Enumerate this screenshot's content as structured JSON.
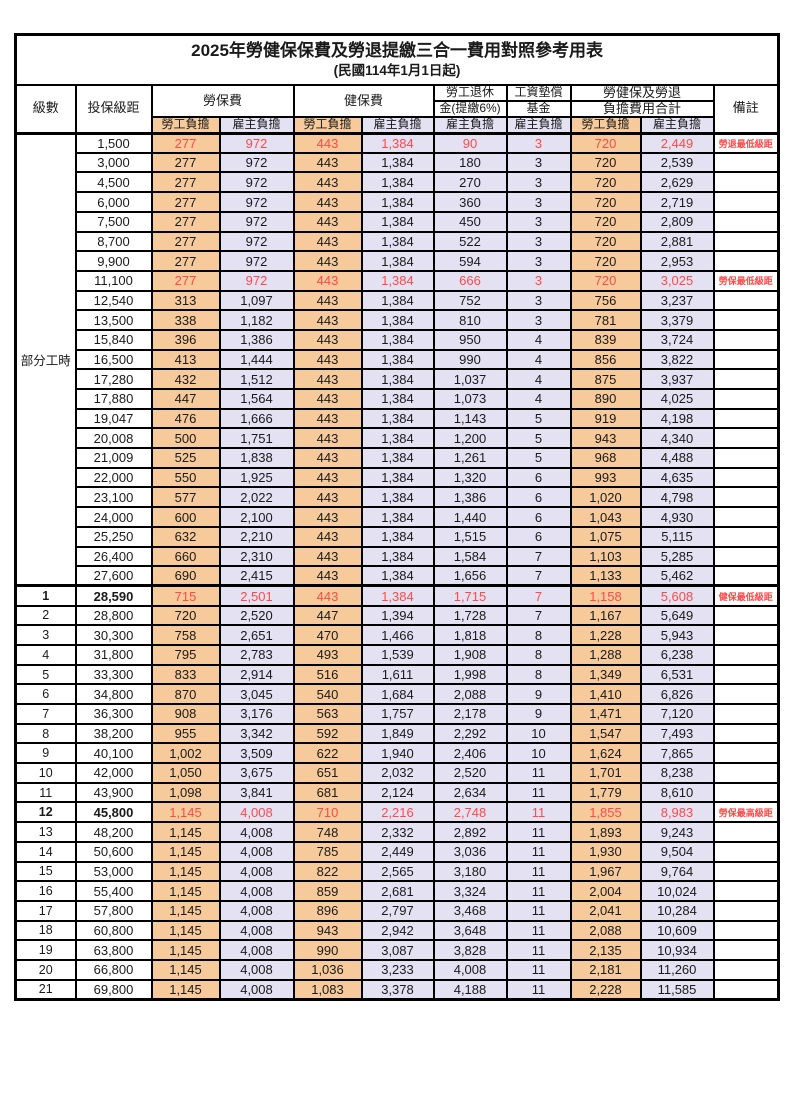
{
  "title": "2025年勞健保保費及勞退提繳三合一費用對照參考用表",
  "subtitle": "(民國114年1月1日起)",
  "colors": {
    "employee_bg": "#F6CA9B",
    "employer_bg": "#E3E1F2",
    "highlight_text": "#FF4A4A"
  },
  "header": {
    "level": "級數",
    "salary": "投保級距",
    "labor_insurance": "勞保費",
    "health_insurance": "健保費",
    "pension_line1": "勞工退休",
    "pension_line2": "金(提繳6%)",
    "wage_fund_line1": "工資墊償",
    "wage_fund_line2": "基金",
    "total_line1": "勞健保及勞退",
    "total_line2": "負擔費用合計",
    "remark": "備註",
    "employee_share": "勞工負擔",
    "employer_share": "雇主負擔"
  },
  "table": {
    "part_time_label": "部分工時",
    "part_time_span": 23,
    "rows": [
      {
        "group_start": true,
        "salary": "1,500",
        "values": [
          "277",
          "972",
          "443",
          "1,384",
          "90",
          "3",
          "720",
          "2,449"
        ],
        "remark": "勞退最低級距",
        "hl": true
      },
      {
        "salary": "3,000",
        "values": [
          "277",
          "972",
          "443",
          "1,384",
          "180",
          "3",
          "720",
          "2,539"
        ],
        "remark": ""
      },
      {
        "salary": "4,500",
        "values": [
          "277",
          "972",
          "443",
          "1,384",
          "270",
          "3",
          "720",
          "2,629"
        ],
        "remark": ""
      },
      {
        "salary": "6,000",
        "values": [
          "277",
          "972",
          "443",
          "1,384",
          "360",
          "3",
          "720",
          "2,719"
        ],
        "remark": ""
      },
      {
        "salary": "7,500",
        "values": [
          "277",
          "972",
          "443",
          "1,384",
          "450",
          "3",
          "720",
          "2,809"
        ],
        "remark": ""
      },
      {
        "salary": "8,700",
        "values": [
          "277",
          "972",
          "443",
          "1,384",
          "522",
          "3",
          "720",
          "2,881"
        ],
        "remark": ""
      },
      {
        "salary": "9,900",
        "values": [
          "277",
          "972",
          "443",
          "1,384",
          "594",
          "3",
          "720",
          "2,953"
        ],
        "remark": ""
      },
      {
        "salary": "11,100",
        "values": [
          "277",
          "972",
          "443",
          "1,384",
          "666",
          "3",
          "720",
          "3,025"
        ],
        "remark": "勞保最低級距",
        "hl": true
      },
      {
        "salary": "12,540",
        "values": [
          "313",
          "1,097",
          "443",
          "1,384",
          "752",
          "3",
          "756",
          "3,237"
        ],
        "remark": ""
      },
      {
        "salary": "13,500",
        "values": [
          "338",
          "1,182",
          "443",
          "1,384",
          "810",
          "3",
          "781",
          "3,379"
        ],
        "remark": ""
      },
      {
        "salary": "15,840",
        "values": [
          "396",
          "1,386",
          "443",
          "1,384",
          "950",
          "4",
          "839",
          "3,724"
        ],
        "remark": ""
      },
      {
        "salary": "16,500",
        "values": [
          "413",
          "1,444",
          "443",
          "1,384",
          "990",
          "4",
          "856",
          "3,822"
        ],
        "remark": ""
      },
      {
        "salary": "17,280",
        "values": [
          "432",
          "1,512",
          "443",
          "1,384",
          "1,037",
          "4",
          "875",
          "3,937"
        ],
        "remark": ""
      },
      {
        "salary": "17,880",
        "values": [
          "447",
          "1,564",
          "443",
          "1,384",
          "1,073",
          "4",
          "890",
          "4,025"
        ],
        "remark": ""
      },
      {
        "salary": "19,047",
        "values": [
          "476",
          "1,666",
          "443",
          "1,384",
          "1,143",
          "5",
          "919",
          "4,198"
        ],
        "remark": ""
      },
      {
        "salary": "20,008",
        "values": [
          "500",
          "1,751",
          "443",
          "1,384",
          "1,200",
          "5",
          "943",
          "4,340"
        ],
        "remark": ""
      },
      {
        "salary": "21,009",
        "values": [
          "525",
          "1,838",
          "443",
          "1,384",
          "1,261",
          "5",
          "968",
          "4,488"
        ],
        "remark": ""
      },
      {
        "salary": "22,000",
        "values": [
          "550",
          "1,925",
          "443",
          "1,384",
          "1,320",
          "6",
          "993",
          "4,635"
        ],
        "remark": ""
      },
      {
        "salary": "23,100",
        "values": [
          "577",
          "2,022",
          "443",
          "1,384",
          "1,386",
          "6",
          "1,020",
          "4,798"
        ],
        "remark": ""
      },
      {
        "salary": "24,000",
        "values": [
          "600",
          "2,100",
          "443",
          "1,384",
          "1,440",
          "6",
          "1,043",
          "4,930"
        ],
        "remark": ""
      },
      {
        "salary": "25,250",
        "values": [
          "632",
          "2,210",
          "443",
          "1,384",
          "1,515",
          "6",
          "1,075",
          "5,115"
        ],
        "remark": ""
      },
      {
        "salary": "26,400",
        "values": [
          "660",
          "2,310",
          "443",
          "1,384",
          "1,584",
          "7",
          "1,103",
          "5,285"
        ],
        "remark": ""
      },
      {
        "salary": "27,600",
        "values": [
          "690",
          "2,415",
          "443",
          "1,384",
          "1,656",
          "7",
          "1,133",
          "5,462"
        ],
        "remark": ""
      },
      {
        "level": "1",
        "salary": "28,590",
        "values": [
          "715",
          "2,501",
          "443",
          "1,384",
          "1,715",
          "7",
          "1,158",
          "5,608"
        ],
        "remark": "健保最低級距",
        "hl": true,
        "bold": true,
        "thick_top": true
      },
      {
        "level": "2",
        "salary": "28,800",
        "values": [
          "720",
          "2,520",
          "447",
          "1,394",
          "1,728",
          "7",
          "1,167",
          "5,649"
        ],
        "remark": ""
      },
      {
        "level": "3",
        "salary": "30,300",
        "values": [
          "758",
          "2,651",
          "470",
          "1,466",
          "1,818",
          "8",
          "1,228",
          "5,943"
        ],
        "remark": ""
      },
      {
        "level": "4",
        "salary": "31,800",
        "values": [
          "795",
          "2,783",
          "493",
          "1,539",
          "1,908",
          "8",
          "1,288",
          "6,238"
        ],
        "remark": ""
      },
      {
        "level": "5",
        "salary": "33,300",
        "values": [
          "833",
          "2,914",
          "516",
          "1,611",
          "1,998",
          "8",
          "1,349",
          "6,531"
        ],
        "remark": ""
      },
      {
        "level": "6",
        "salary": "34,800",
        "values": [
          "870",
          "3,045",
          "540",
          "1,684",
          "2,088",
          "9",
          "1,410",
          "6,826"
        ],
        "remark": ""
      },
      {
        "level": "7",
        "salary": "36,300",
        "values": [
          "908",
          "3,176",
          "563",
          "1,757",
          "2,178",
          "9",
          "1,471",
          "7,120"
        ],
        "remark": ""
      },
      {
        "level": "8",
        "salary": "38,200",
        "values": [
          "955",
          "3,342",
          "592",
          "1,849",
          "2,292",
          "10",
          "1,547",
          "7,493"
        ],
        "remark": ""
      },
      {
        "level": "9",
        "salary": "40,100",
        "values": [
          "1,002",
          "3,509",
          "622",
          "1,940",
          "2,406",
          "10",
          "1,624",
          "7,865"
        ],
        "remark": ""
      },
      {
        "level": "10",
        "salary": "42,000",
        "values": [
          "1,050",
          "3,675",
          "651",
          "2,032",
          "2,520",
          "11",
          "1,701",
          "8,238"
        ],
        "remark": ""
      },
      {
        "level": "11",
        "salary": "43,900",
        "values": [
          "1,098",
          "3,841",
          "681",
          "2,124",
          "2,634",
          "11",
          "1,779",
          "8,610"
        ],
        "remark": ""
      },
      {
        "level": "12",
        "salary": "45,800",
        "values": [
          "1,145",
          "4,008",
          "710",
          "2,216",
          "2,748",
          "11",
          "1,855",
          "8,983"
        ],
        "remark": "勞保最高級距",
        "hl": true,
        "bold": true
      },
      {
        "level": "13",
        "salary": "48,200",
        "values": [
          "1,145",
          "4,008",
          "748",
          "2,332",
          "2,892",
          "11",
          "1,893",
          "9,243"
        ],
        "remark": ""
      },
      {
        "level": "14",
        "salary": "50,600",
        "values": [
          "1,145",
          "4,008",
          "785",
          "2,449",
          "3,036",
          "11",
          "1,930",
          "9,504"
        ],
        "remark": ""
      },
      {
        "level": "15",
        "salary": "53,000",
        "values": [
          "1,145",
          "4,008",
          "822",
          "2,565",
          "3,180",
          "11",
          "1,967",
          "9,764"
        ],
        "remark": ""
      },
      {
        "level": "16",
        "salary": "55,400",
        "values": [
          "1,145",
          "4,008",
          "859",
          "2,681",
          "3,324",
          "11",
          "2,004",
          "10,024"
        ],
        "remark": ""
      },
      {
        "level": "17",
        "salary": "57,800",
        "values": [
          "1,145",
          "4,008",
          "896",
          "2,797",
          "3,468",
          "11",
          "2,041",
          "10,284"
        ],
        "remark": ""
      },
      {
        "level": "18",
        "salary": "60,800",
        "values": [
          "1,145",
          "4,008",
          "943",
          "2,942",
          "3,648",
          "11",
          "2,088",
          "10,609"
        ],
        "remark": ""
      },
      {
        "level": "19",
        "salary": "63,800",
        "values": [
          "1,145",
          "4,008",
          "990",
          "3,087",
          "3,828",
          "11",
          "2,135",
          "10,934"
        ],
        "remark": ""
      },
      {
        "level": "20",
        "salary": "66,800",
        "values": [
          "1,145",
          "4,008",
          "1,036",
          "3,233",
          "4,008",
          "11",
          "2,181",
          "11,260"
        ],
        "remark": ""
      },
      {
        "level": "21",
        "salary": "69,800",
        "values": [
          "1,145",
          "4,008",
          "1,083",
          "3,378",
          "4,188",
          "11",
          "2,228",
          "11,585"
        ],
        "remark": ""
      }
    ]
  }
}
